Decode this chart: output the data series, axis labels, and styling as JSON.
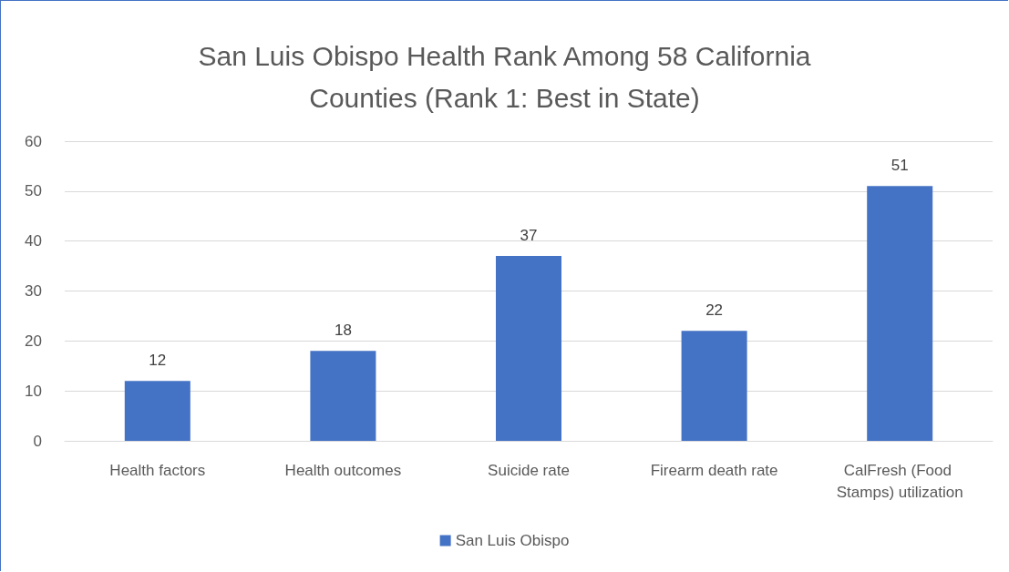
{
  "chart_data": {
    "type": "bar",
    "title": "San Luis Obispo Health Rank Among 58 California\nCounties (Rank 1: Best in State)",
    "categories": [
      "Health factors",
      "Health outcomes",
      "Suicide rate",
      "Firearm death rate",
      "CalFresh (Food Stamps) utilization"
    ],
    "series": [
      {
        "name": "San Luis Obispo",
        "color": "#4472c4",
        "values": [
          12,
          18,
          37,
          22,
          51
        ]
      }
    ],
    "ylim": [
      0,
      60
    ],
    "yticks": [
      0,
      10,
      20,
      30,
      40,
      50,
      60
    ],
    "grid": "y",
    "legend": "bottom",
    "data_labels": true
  }
}
